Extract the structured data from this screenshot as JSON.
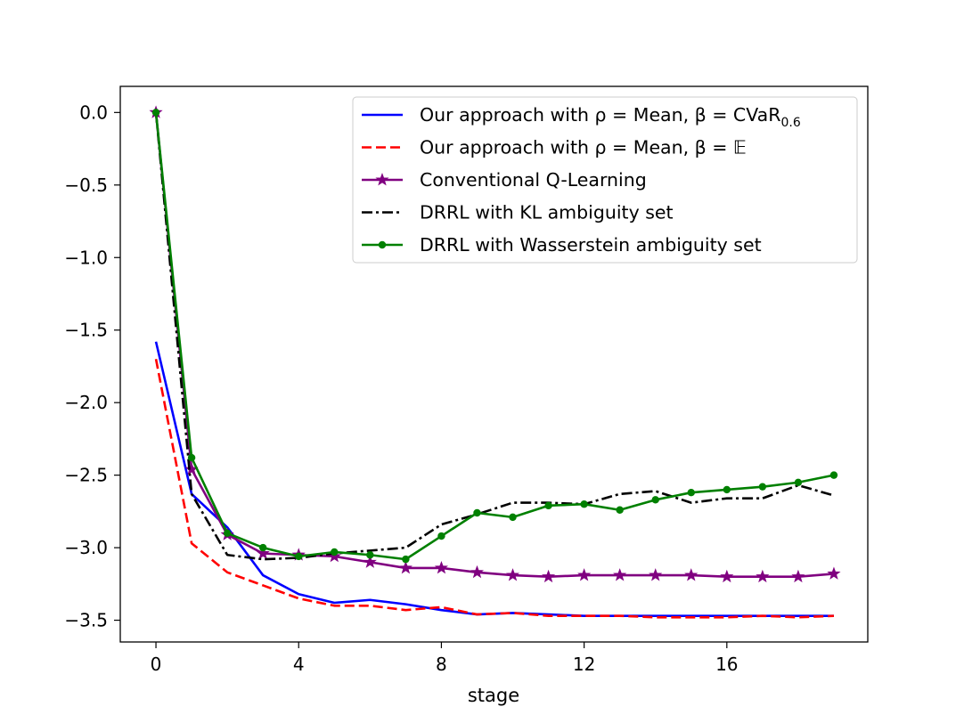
{
  "chart_data": {
    "type": "line",
    "title": "",
    "xlabel": "stage",
    "ylabel": "",
    "xlim": [
      -1.0,
      19.95
    ],
    "ylim": [
      -3.65,
      0.18
    ],
    "xticks": [
      0,
      4,
      8,
      12,
      16
    ],
    "xtick_labels": [
      "0",
      "4",
      "8",
      "12",
      "16"
    ],
    "yticks": [
      0.0,
      -0.5,
      -1.0,
      -1.5,
      -2.0,
      -2.5,
      -3.0,
      -3.5
    ],
    "ytick_labels": [
      "0.0",
      "−0.5",
      "−1.0",
      "−1.5",
      "−2.0",
      "−2.5",
      "−3.0",
      "−3.5"
    ],
    "grid": false,
    "legend_position": "top-right",
    "x": [
      0,
      1,
      2,
      3,
      4,
      5,
      6,
      7,
      8,
      9,
      10,
      11,
      12,
      13,
      14,
      15,
      16,
      17,
      18,
      19
    ],
    "series": [
      {
        "name": "Our approach with ρ = Mean, β = CVaR0.6",
        "legend_main": "Our approach with ρ = Mean, β = CVaR",
        "legend_sub": "0.6",
        "color": "#0000ff",
        "linestyle": "solid",
        "marker": "none",
        "values": [
          -1.58,
          -2.63,
          -2.86,
          -3.19,
          -3.32,
          -3.38,
          -3.36,
          -3.39,
          -3.43,
          -3.46,
          -3.45,
          -3.46,
          -3.47,
          -3.47,
          -3.47,
          -3.47,
          -3.47,
          -3.47,
          -3.47,
          -3.47
        ]
      },
      {
        "name": "Our approach with ρ = Mean, β = 𝔼",
        "legend_main": "Our approach with ρ = Mean, β = 𝔼",
        "legend_sub": "",
        "color": "#ff0000",
        "linestyle": "dashed",
        "marker": "none",
        "values": [
          -1.7,
          -2.97,
          -3.17,
          -3.26,
          -3.35,
          -3.4,
          -3.4,
          -3.43,
          -3.41,
          -3.46,
          -3.45,
          -3.47,
          -3.47,
          -3.47,
          -3.48,
          -3.48,
          -3.48,
          -3.47,
          -3.48,
          -3.47
        ]
      },
      {
        "name": "Conventional Q-Learning",
        "legend_main": "Conventional Q-Learning",
        "legend_sub": "",
        "color": "#800080",
        "linestyle": "solid",
        "marker": "star",
        "values": [
          0.0,
          -2.46,
          -2.91,
          -3.04,
          -3.05,
          -3.06,
          -3.1,
          -3.14,
          -3.14,
          -3.17,
          -3.19,
          -3.2,
          -3.19,
          -3.19,
          -3.19,
          -3.19,
          -3.2,
          -3.2,
          -3.2,
          -3.18
        ]
      },
      {
        "name": "DRRL with KL ambiguity set",
        "legend_main": "DRRL with KL ambiguity set",
        "legend_sub": "",
        "color": "#000000",
        "linestyle": "dashdot",
        "marker": "none",
        "values": [
          0.0,
          -2.63,
          -3.05,
          -3.08,
          -3.07,
          -3.04,
          -3.02,
          -3.0,
          -2.84,
          -2.77,
          -2.69,
          -2.69,
          -2.7,
          -2.63,
          -2.61,
          -2.69,
          -2.66,
          -2.66,
          -2.57,
          -2.64
        ]
      },
      {
        "name": "DRRL with Wasserstein ambiguity set",
        "legend_main": "DRRL with Wasserstein ambiguity set",
        "legend_sub": "",
        "color": "#008000",
        "linestyle": "solid",
        "marker": "dot",
        "values": [
          0.0,
          -2.38,
          -2.9,
          -3.0,
          -3.06,
          -3.03,
          -3.05,
          -3.08,
          -2.92,
          -2.76,
          -2.79,
          -2.71,
          -2.7,
          -2.74,
          -2.67,
          -2.62,
          -2.6,
          -2.58,
          -2.55,
          -2.5
        ]
      }
    ]
  }
}
